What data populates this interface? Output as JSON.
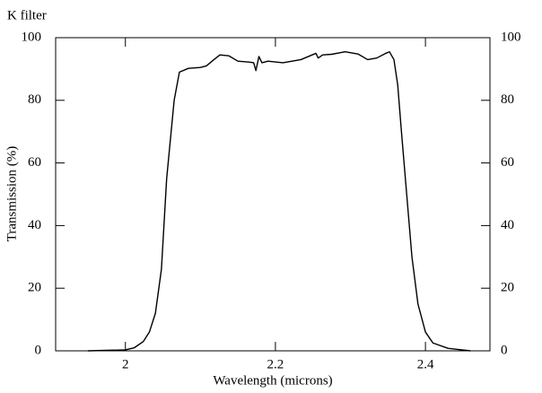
{
  "chart_data": {
    "type": "line",
    "title": "K filter",
    "xlabel": "Wavelength (microns)",
    "ylabel": "Transmission (%)",
    "x": [
      1.95,
      2.0,
      2.012,
      2.024,
      2.032,
      2.04,
      2.048,
      2.055,
      2.065,
      2.072,
      2.084,
      2.1,
      2.108,
      2.118,
      2.126,
      2.138,
      2.15,
      2.165,
      2.171,
      2.174,
      2.178,
      2.182,
      2.19,
      2.21,
      2.234,
      2.254,
      2.257,
      2.263,
      2.275,
      2.293,
      2.31,
      2.323,
      2.335,
      2.347,
      2.352,
      2.358,
      2.363,
      2.368,
      2.375,
      2.382,
      2.39,
      2.4,
      2.41,
      2.43,
      2.46
    ],
    "series": [
      {
        "name": "K filter",
        "color": "#000000",
        "values": [
          0,
          0.3,
          1,
          3,
          6,
          12,
          26,
          55,
          80,
          89,
          90.2,
          90.5,
          91,
          93,
          94.5,
          94.2,
          92.5,
          92.2,
          92,
          89.5,
          94,
          92,
          92.5,
          92,
          93,
          95,
          93.5,
          94.5,
          94.7,
          95.5,
          94.8,
          93,
          93.5,
          95,
          95.5,
          93,
          85,
          70,
          50,
          30,
          15,
          6,
          2.5,
          0.8,
          0
        ]
      }
    ],
    "xlim": [
      1.907,
      2.486
    ],
    "xticks": [
      2,
      2.2,
      2.4
    ],
    "ylim": [
      0,
      100
    ],
    "yticks": [
      0,
      20,
      40,
      60,
      80,
      100
    ],
    "y2lim": [
      0,
      100
    ],
    "y2ticks": [
      0,
      20,
      40,
      60,
      80,
      100
    ]
  }
}
